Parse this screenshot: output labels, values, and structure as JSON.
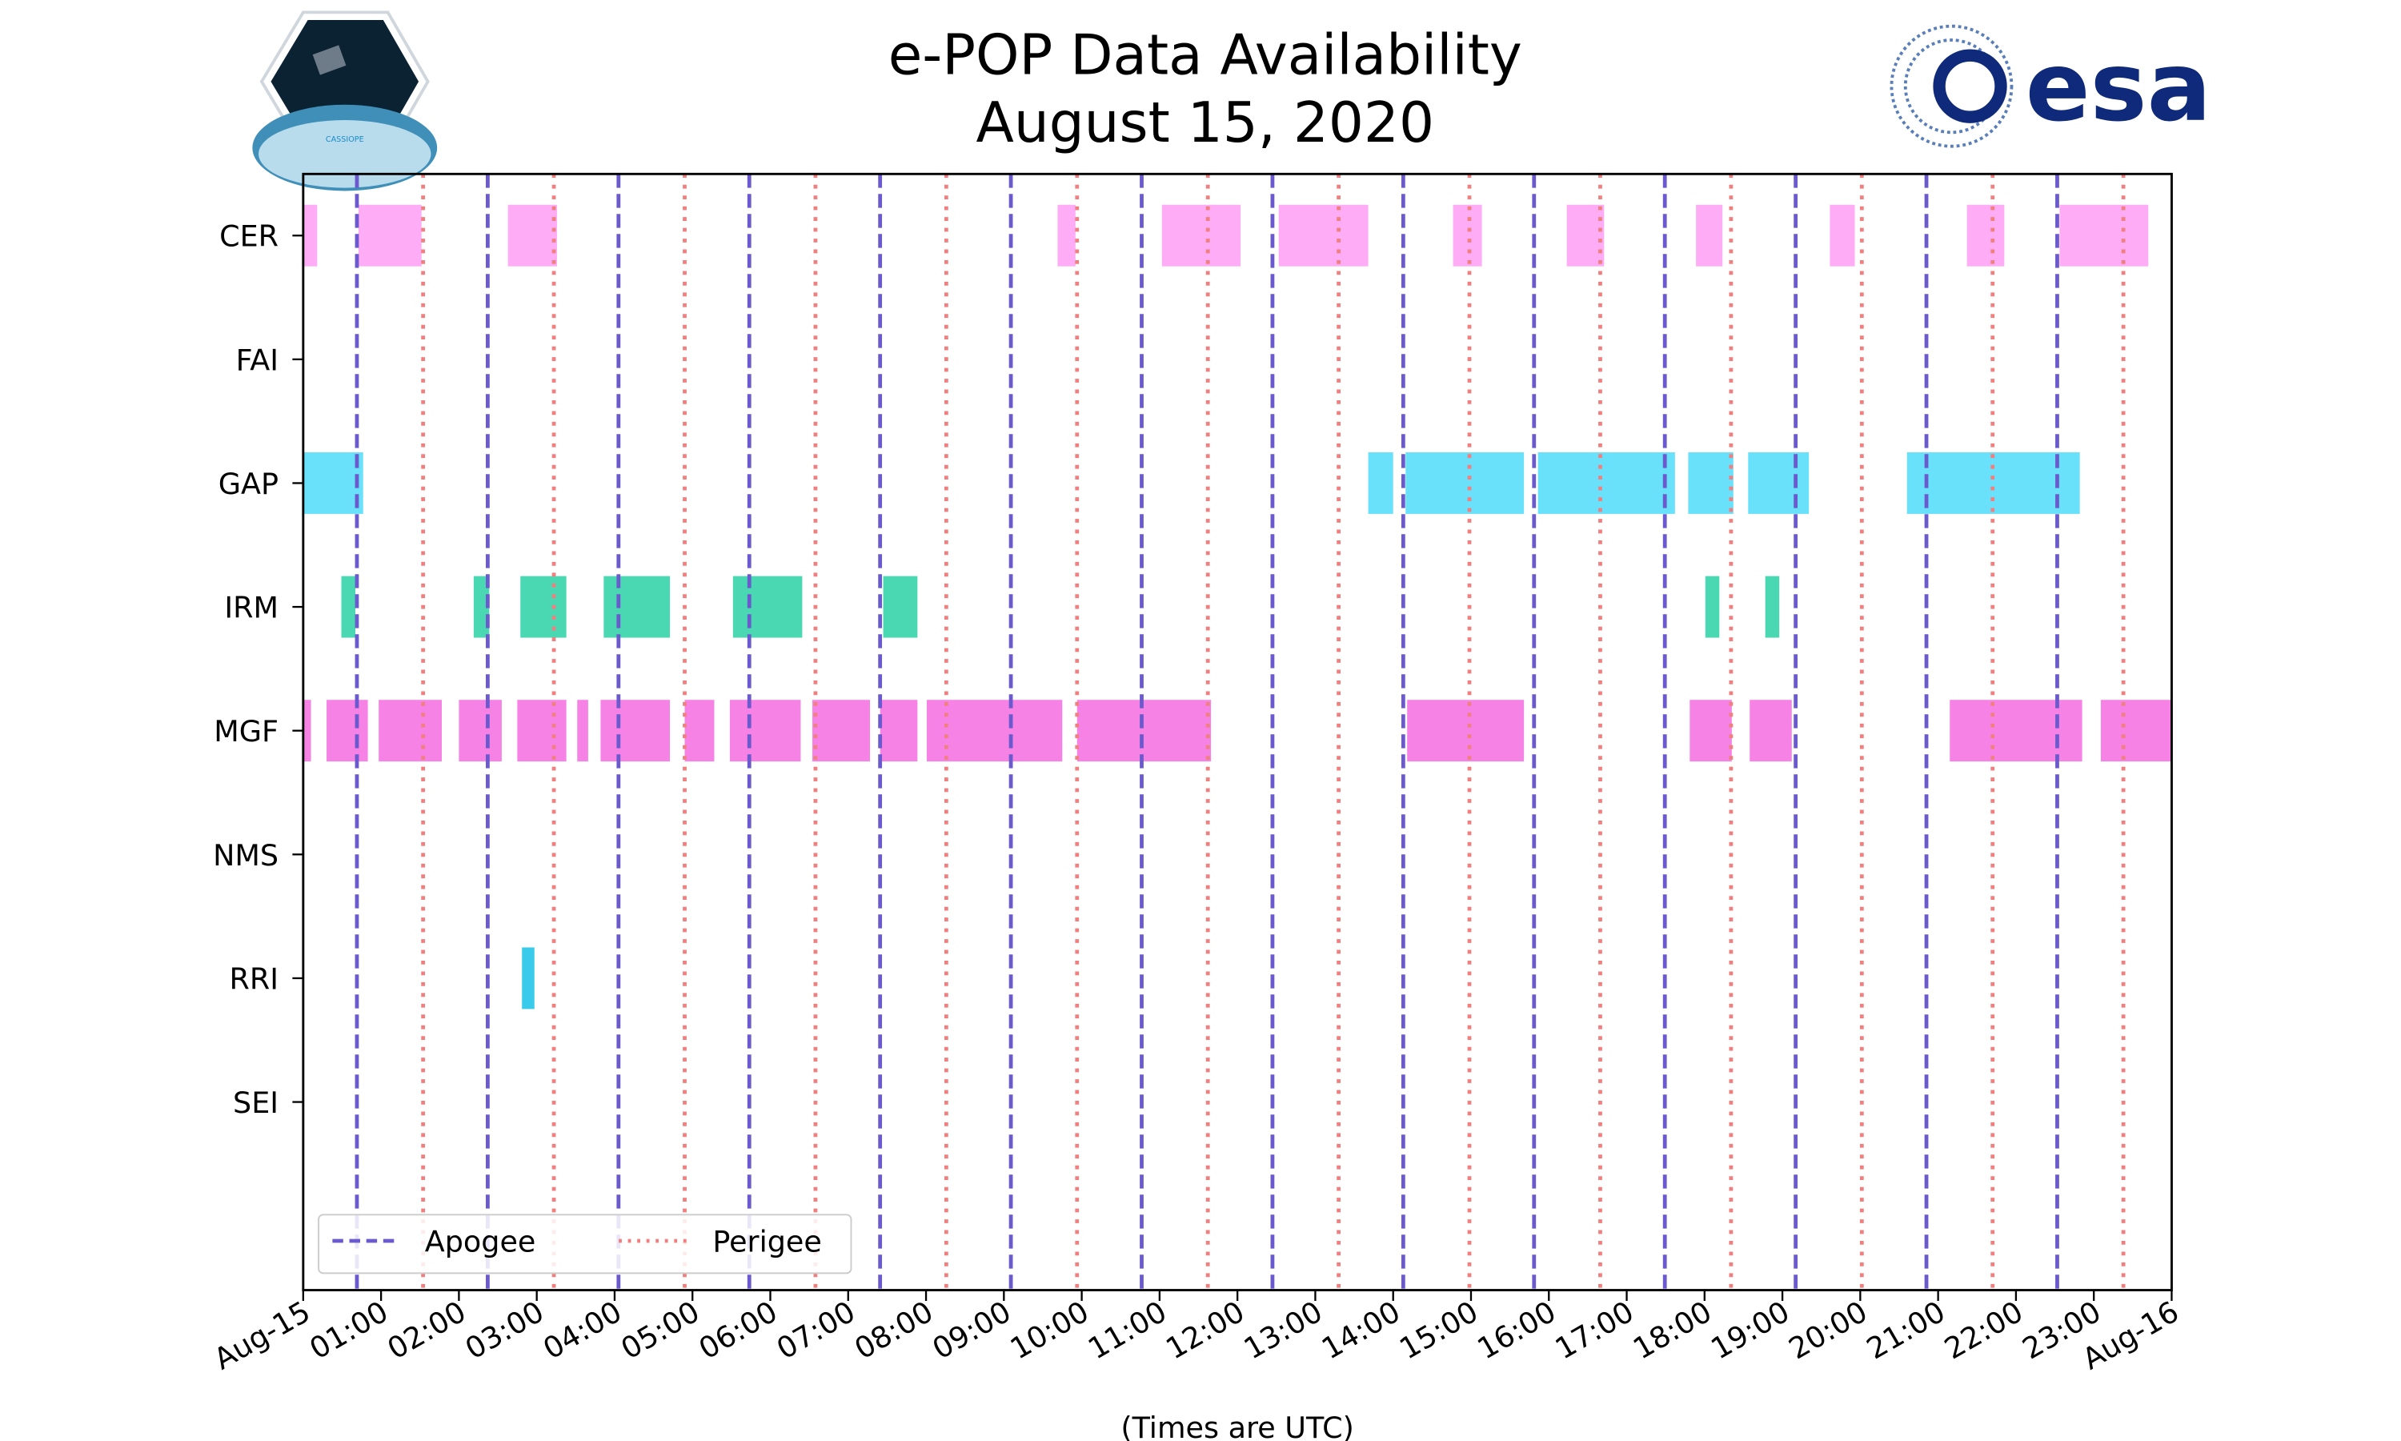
{
  "chart_data": {
    "type": "timeline",
    "title_line1": "e-POP Data Availability",
    "title_line2": "August 15, 2020",
    "xlabel": "(Times are UTC)",
    "xlim_hours": [
      0,
      24
    ],
    "x_tick_labels": [
      "Aug-15",
      "01:00",
      "02:00",
      "03:00",
      "04:00",
      "05:00",
      "06:00",
      "07:00",
      "08:00",
      "09:00",
      "10:00",
      "11:00",
      "12:00",
      "13:00",
      "14:00",
      "15:00",
      "16:00",
      "17:00",
      "18:00",
      "19:00",
      "20:00",
      "21:00",
      "22:00",
      "23:00",
      "Aug-16"
    ],
    "instruments": [
      "CER",
      "FAI",
      "GAP",
      "IRM",
      "MGF",
      "NMS",
      "RRI",
      "SEI"
    ],
    "series": [
      {
        "name": "CER",
        "color": "#ffa8f5",
        "intervals": [
          [
            0,
            0.18
          ],
          [
            0.71,
            1.52
          ],
          [
            2.63,
            3.26
          ],
          [
            9.69,
            9.92
          ],
          [
            11.03,
            12.04
          ],
          [
            12.53,
            13.68
          ],
          [
            14.77,
            15.14
          ],
          [
            16.23,
            16.71
          ],
          [
            17.89,
            18.23
          ],
          [
            19.61,
            19.93
          ],
          [
            21.37,
            21.85
          ],
          [
            22.56,
            23.7
          ]
        ]
      },
      {
        "name": "FAI",
        "color": "#888888",
        "intervals": []
      },
      {
        "name": "GAP",
        "color": "#62dffb",
        "intervals": [
          [
            0,
            0.77
          ],
          [
            13.68,
            14.0
          ],
          [
            14.16,
            15.68
          ],
          [
            15.86,
            17.62
          ],
          [
            17.79,
            18.37
          ],
          [
            18.56,
            19.34
          ],
          [
            20.6,
            22.82
          ]
        ]
      },
      {
        "name": "IRM",
        "color": "#40d6ae",
        "intervals": [
          [
            0.49,
            0.67
          ],
          [
            2.19,
            2.39
          ],
          [
            2.79,
            3.38
          ],
          [
            3.86,
            4.71
          ],
          [
            5.52,
            6.41
          ],
          [
            7.45,
            7.89
          ],
          [
            18.01,
            18.19
          ],
          [
            18.78,
            18.96
          ]
        ]
      },
      {
        "name": "MGF",
        "color": "#f57be4",
        "intervals": [
          [
            0,
            0.1
          ],
          [
            0.3,
            0.83
          ],
          [
            0.97,
            1.78
          ],
          [
            2.0,
            2.55
          ],
          [
            2.75,
            3.38
          ],
          [
            3.52,
            3.66
          ],
          [
            3.82,
            4.71
          ],
          [
            4.9,
            5.28
          ],
          [
            5.48,
            6.39
          ],
          [
            6.54,
            7.28
          ],
          [
            7.41,
            7.89
          ],
          [
            8.01,
            9.75
          ],
          [
            9.94,
            11.66
          ],
          [
            14.18,
            15.68
          ],
          [
            17.81,
            18.35
          ],
          [
            18.58,
            19.12
          ],
          [
            21.15,
            22.85
          ],
          [
            23.09,
            24
          ]
        ]
      },
      {
        "name": "NMS",
        "color": "#888888",
        "intervals": []
      },
      {
        "name": "RRI",
        "color": "#2ec8e8",
        "intervals": [
          [
            2.81,
            2.97
          ]
        ]
      },
      {
        "name": "SEI",
        "color": "#888888",
        "intervals": []
      }
    ],
    "apogee_hours": [
      0.69,
      2.37,
      4.05,
      5.73,
      7.41,
      9.09,
      10.77,
      12.45,
      14.13,
      15.81,
      17.49,
      19.17,
      20.85,
      22.53
    ],
    "perigee_hours": [
      1.54,
      3.22,
      4.9,
      6.58,
      8.26,
      9.94,
      11.62,
      13.3,
      14.98,
      16.66,
      18.34,
      20.02,
      21.7,
      23.38
    ],
    "legend": {
      "placement": "lower-left",
      "apogee_label": "Apogee",
      "perigee_label": "Perigee",
      "apogee_color": "#6a5acd",
      "perigee_color": "#f08080"
    }
  },
  "logos": {
    "left": "CASSIOPE",
    "right": "esa"
  }
}
